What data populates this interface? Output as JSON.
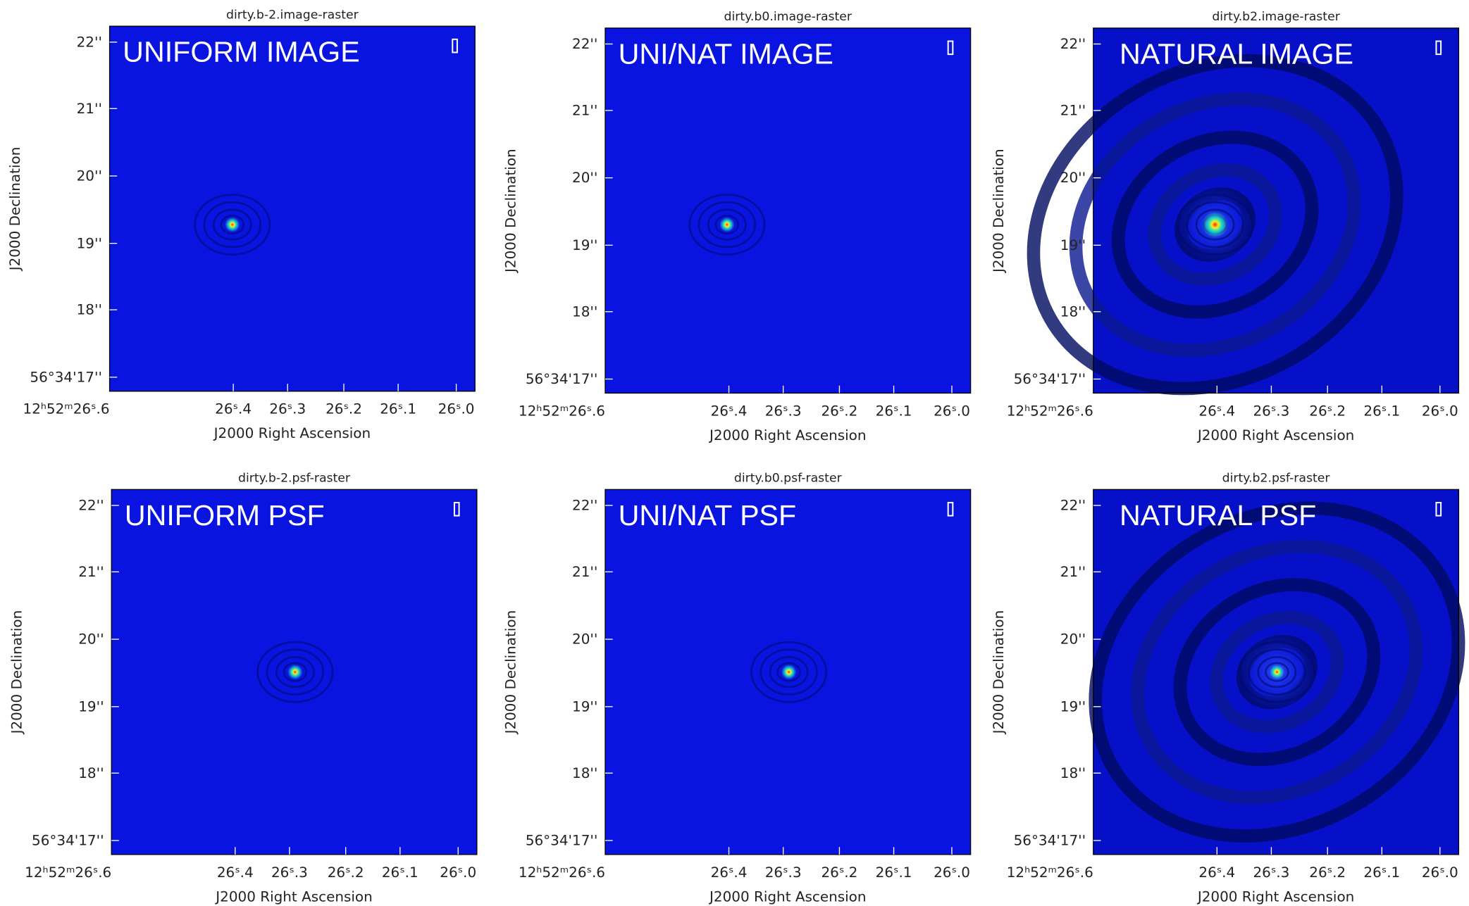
{
  "panels": [
    {
      "title": "dirty.b-2.image-raster",
      "label": "UNIFORM IMAGE"
    },
    {
      "title": "dirty.b0.image-raster",
      "label": "UNI/NAT IMAGE"
    },
    {
      "title": "dirty.b2.image-raster",
      "label": "NATURAL IMAGE"
    },
    {
      "title": "dirty.b-2.psf-raster",
      "label": "UNIFORM PSF"
    },
    {
      "title": "dirty.b0.psf-raster",
      "label": "UNI/NAT PSF"
    },
    {
      "title": "dirty.b2.psf-raster",
      "label": "NATURAL PSF"
    }
  ],
  "yticks": [
    "22''",
    "21''",
    "20''",
    "19''",
    "18''",
    "56°34'17''"
  ],
  "xticks": [
    "12ʰ52ᵐ26ˢ.6",
    "26ˢ.4",
    "26ˢ.3",
    "26ˢ.2",
    "26ˢ.1",
    "26ˢ.0"
  ],
  "xlabel": "J2000 Right Ascension",
  "ylabel": "J2000 Declination"
}
